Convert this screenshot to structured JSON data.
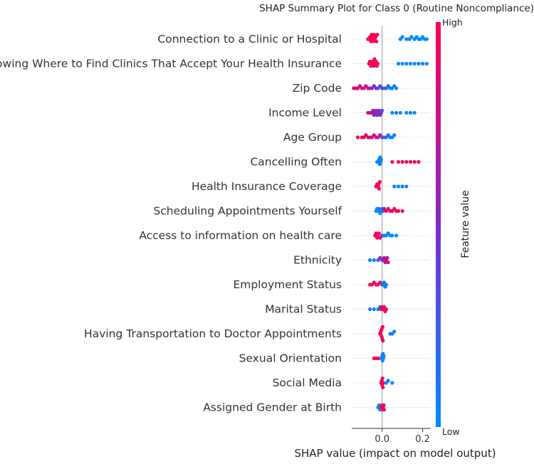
{
  "chart_data": {
    "type": "scatter",
    "subtype": "shap-summary-beeswarm",
    "title": "SHAP Summary Plot for Class 0 (Routine Noncompliance)",
    "xlabel": "SHAP value (impact on model output)",
    "xlim": [
      -0.15,
      0.24
    ],
    "xticks": [
      {
        "value": 0.0,
        "label": "0.0"
      },
      {
        "value": 0.2,
        "label": "0.2"
      }
    ],
    "colorbar": {
      "title": "Feature value",
      "high_label": "High",
      "low_label": "Low",
      "high_color": "#ff0052",
      "low_color": "#008bfb"
    },
    "features": [
      {
        "name": "Connection to a Clinic or Hospital",
        "points": [
          [
            -0.07,
            1.0
          ],
          [
            -0.064,
            1.0
          ],
          [
            -0.06,
            0.95
          ],
          [
            -0.055,
            1.0
          ],
          [
            -0.052,
            0.9
          ],
          [
            -0.05,
            1.0
          ],
          [
            -0.045,
            0.95
          ],
          [
            -0.042,
            0.9
          ],
          [
            -0.04,
            1.0
          ],
          [
            -0.036,
            1.0
          ],
          [
            -0.032,
            0.95
          ],
          [
            -0.028,
            1.0
          ],
          [
            -0.024,
            1.0
          ],
          [
            0.09,
            0.0
          ],
          [
            0.1,
            0.0
          ],
          [
            0.12,
            0.0
          ],
          [
            0.135,
            0.0
          ],
          [
            0.145,
            0.0
          ],
          [
            0.16,
            0.0
          ],
          [
            0.17,
            0.0
          ],
          [
            0.18,
            0.0
          ],
          [
            0.19,
            0.0
          ],
          [
            0.2,
            0.0
          ],
          [
            0.21,
            0.0
          ],
          [
            0.22,
            0.0
          ]
        ]
      },
      {
        "name": "Knowing Where to Find Clinics That Accept Your Health Insurance",
        "points": [
          [
            -0.065,
            1.0
          ],
          [
            -0.06,
            0.95
          ],
          [
            -0.055,
            1.0
          ],
          [
            -0.05,
            0.9
          ],
          [
            -0.046,
            1.0
          ],
          [
            -0.042,
            0.95
          ],
          [
            -0.038,
            1.0
          ],
          [
            -0.034,
            1.0
          ],
          [
            -0.03,
            0.95
          ],
          [
            -0.026,
            1.0
          ],
          [
            -0.022,
            1.0
          ],
          [
            0.08,
            0.0
          ],
          [
            0.1,
            0.0
          ],
          [
            0.12,
            0.0
          ],
          [
            0.14,
            0.0
          ],
          [
            0.16,
            0.0
          ],
          [
            0.18,
            0.0
          ],
          [
            0.2,
            0.0
          ],
          [
            0.22,
            0.0
          ]
        ]
      },
      {
        "name": "Zip Code",
        "points": [
          [
            -0.14,
            0.95
          ],
          [
            -0.13,
            0.9
          ],
          [
            -0.12,
            0.85
          ],
          [
            -0.11,
            0.9
          ],
          [
            -0.1,
            0.8
          ],
          [
            -0.09,
            0.85
          ],
          [
            -0.08,
            0.75
          ],
          [
            -0.07,
            0.7
          ],
          [
            -0.06,
            0.8
          ],
          [
            -0.05,
            0.6
          ],
          [
            -0.04,
            0.5
          ],
          [
            -0.03,
            0.45
          ],
          [
            -0.02,
            0.3
          ],
          [
            -0.01,
            0.35
          ],
          [
            0.0,
            0.4
          ],
          [
            0.01,
            0.2
          ],
          [
            0.02,
            0.25
          ],
          [
            0.03,
            0.15
          ],
          [
            0.04,
            0.1
          ],
          [
            0.05,
            0.05
          ],
          [
            0.06,
            0.1
          ],
          [
            0.07,
            0.0
          ]
        ]
      },
      {
        "name": "Income Level",
        "points": [
          [
            -0.07,
            0.9
          ],
          [
            -0.06,
            0.8
          ],
          [
            -0.05,
            0.7
          ],
          [
            -0.045,
            0.6
          ],
          [
            -0.04,
            0.5
          ],
          [
            -0.035,
            0.6
          ],
          [
            -0.03,
            0.55
          ],
          [
            -0.025,
            0.5
          ],
          [
            -0.02,
            0.45
          ],
          [
            -0.015,
            0.5
          ],
          [
            -0.01,
            0.4
          ],
          [
            -0.005,
            0.6
          ],
          [
            0.0,
            0.3
          ],
          [
            0.05,
            0.0
          ],
          [
            0.07,
            0.05
          ],
          [
            0.09,
            0.0
          ],
          [
            0.12,
            0.0
          ],
          [
            0.14,
            0.05
          ],
          [
            0.16,
            0.0
          ]
        ]
      },
      {
        "name": "Age Group",
        "points": [
          [
            -0.12,
            1.0
          ],
          [
            -0.1,
            0.95
          ],
          [
            -0.09,
            0.9
          ],
          [
            -0.08,
            0.95
          ],
          [
            -0.07,
            0.85
          ],
          [
            -0.06,
            0.9
          ],
          [
            -0.05,
            0.8
          ],
          [
            -0.04,
            0.85
          ],
          [
            -0.03,
            0.75
          ],
          [
            -0.02,
            0.7
          ],
          [
            -0.01,
            0.8
          ],
          [
            0.0,
            0.3
          ],
          [
            0.01,
            0.2
          ],
          [
            0.02,
            0.1
          ],
          [
            0.03,
            0.15
          ],
          [
            0.04,
            0.05
          ],
          [
            0.05,
            0.0
          ],
          [
            0.06,
            0.1
          ]
        ]
      },
      {
        "name": "Cancelling Often",
        "points": [
          [
            -0.025,
            0.0
          ],
          [
            -0.02,
            0.05
          ],
          [
            -0.015,
            0.0
          ],
          [
            -0.012,
            0.1
          ],
          [
            -0.01,
            0.0
          ],
          [
            -0.008,
            0.05
          ],
          [
            -0.005,
            0.0
          ],
          [
            0.05,
            1.0
          ],
          [
            0.08,
            0.95
          ],
          [
            0.1,
            1.0
          ],
          [
            0.12,
            0.9
          ],
          [
            0.14,
            1.0
          ],
          [
            0.16,
            0.95
          ],
          [
            0.18,
            1.0
          ]
        ]
      },
      {
        "name": "Health Insurance Coverage",
        "points": [
          [
            -0.03,
            1.0
          ],
          [
            -0.025,
            0.95
          ],
          [
            -0.02,
            1.0
          ],
          [
            -0.018,
            0.9
          ],
          [
            -0.015,
            1.0
          ],
          [
            -0.012,
            0.95
          ],
          [
            0.06,
            0.0
          ],
          [
            0.08,
            0.0
          ],
          [
            0.1,
            0.05
          ],
          [
            0.12,
            0.0
          ]
        ]
      },
      {
        "name": "Scheduling Appointments Yourself",
        "points": [
          [
            -0.03,
            0.0
          ],
          [
            -0.025,
            0.05
          ],
          [
            -0.02,
            0.0
          ],
          [
            -0.015,
            0.1
          ],
          [
            -0.01,
            0.0
          ],
          [
            -0.005,
            0.05
          ],
          [
            0.0,
            0.1
          ],
          [
            0.005,
            0.2
          ],
          [
            0.01,
            0.8
          ],
          [
            0.02,
            0.9
          ],
          [
            0.03,
            0.85
          ],
          [
            0.04,
            0.95
          ],
          [
            0.05,
            0.9
          ],
          [
            0.06,
            1.0
          ],
          [
            0.07,
            0.95
          ],
          [
            0.08,
            1.0
          ],
          [
            0.1,
            1.0
          ]
        ]
      },
      {
        "name": "Access to information on health care",
        "points": [
          [
            -0.035,
            1.0
          ],
          [
            -0.03,
            0.95
          ],
          [
            -0.025,
            1.0
          ],
          [
            -0.02,
            0.9
          ],
          [
            -0.015,
            1.0
          ],
          [
            -0.01,
            0.95
          ],
          [
            0.0,
            0.3
          ],
          [
            0.01,
            0.1
          ],
          [
            0.02,
            0.0
          ],
          [
            0.03,
            0.05
          ],
          [
            0.04,
            0.0
          ],
          [
            0.05,
            0.0
          ],
          [
            0.07,
            0.0
          ]
        ]
      },
      {
        "name": "Ethnicity",
        "points": [
          [
            -0.06,
            0.0
          ],
          [
            -0.04,
            0.1
          ],
          [
            -0.02,
            0.2
          ],
          [
            -0.01,
            0.6
          ],
          [
            0.0,
            0.55
          ],
          [
            0.005,
            0.6
          ],
          [
            0.01,
            0.65
          ],
          [
            0.015,
            0.6
          ],
          [
            0.02,
            0.7
          ],
          [
            0.025,
            0.8
          ],
          [
            0.03,
            0.9
          ]
        ]
      },
      {
        "name": "Employment Status",
        "points": [
          [
            -0.06,
            1.0
          ],
          [
            -0.05,
            0.95
          ],
          [
            -0.04,
            1.0
          ],
          [
            -0.03,
            0.9
          ],
          [
            -0.02,
            1.0
          ],
          [
            -0.01,
            0.9
          ],
          [
            0.0,
            0.5
          ],
          [
            0.005,
            0.1
          ],
          [
            0.01,
            0.05
          ],
          [
            0.015,
            0.0
          ],
          [
            0.02,
            0.1
          ]
        ]
      },
      {
        "name": "Marital Status",
        "points": [
          [
            -0.06,
            0.0
          ],
          [
            -0.04,
            0.1
          ],
          [
            -0.02,
            0.0
          ],
          [
            -0.01,
            0.2
          ],
          [
            -0.005,
            0.9
          ],
          [
            0.0,
            0.95
          ],
          [
            0.005,
            1.0
          ],
          [
            0.01,
            0.9
          ],
          [
            0.015,
            1.0
          ],
          [
            0.02,
            0.9
          ]
        ]
      },
      {
        "name": "Having Transportation to Doctor Appointments",
        "points": [
          [
            -0.01,
            1.0
          ],
          [
            -0.008,
            0.95
          ],
          [
            -0.006,
            1.0
          ],
          [
            -0.004,
            0.9
          ],
          [
            -0.002,
            1.0
          ],
          [
            0.0,
            0.95
          ],
          [
            0.002,
            1.0
          ],
          [
            0.004,
            0.9
          ],
          [
            0.04,
            0.0
          ],
          [
            0.05,
            0.05
          ],
          [
            0.06,
            0.0
          ]
        ]
      },
      {
        "name": "Sexual Orientation",
        "points": [
          [
            -0.04,
            1.0
          ],
          [
            -0.03,
            0.95
          ],
          [
            -0.02,
            1.0
          ],
          [
            -0.005,
            0.0
          ],
          [
            0.0,
            0.05
          ],
          [
            0.002,
            0.0
          ],
          [
            0.004,
            0.1
          ],
          [
            0.006,
            0.0
          ],
          [
            0.008,
            0.05
          ]
        ]
      },
      {
        "name": "Social Media",
        "points": [
          [
            -0.005,
            1.0
          ],
          [
            -0.002,
            0.95
          ],
          [
            0.0,
            1.0
          ],
          [
            0.002,
            0.9
          ],
          [
            0.004,
            1.0
          ],
          [
            0.006,
            0.95
          ],
          [
            0.02,
            0.0
          ],
          [
            0.03,
            0.05
          ],
          [
            0.05,
            0.0
          ]
        ]
      },
      {
        "name": "Assigned Gender at Birth",
        "points": [
          [
            -0.02,
            0.0
          ],
          [
            -0.015,
            0.05
          ],
          [
            -0.01,
            0.0
          ],
          [
            -0.005,
            1.0
          ],
          [
            0.0,
            0.95
          ],
          [
            0.002,
            1.0
          ],
          [
            0.005,
            0.9
          ],
          [
            0.008,
            1.0
          ],
          [
            0.01,
            0.95
          ]
        ]
      }
    ]
  }
}
